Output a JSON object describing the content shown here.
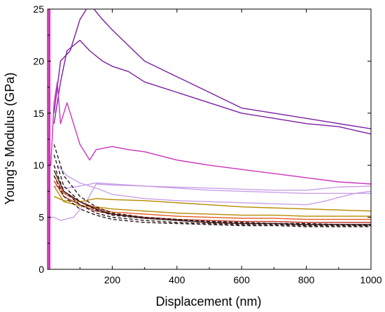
{
  "chart_data": {
    "type": "line",
    "title": "",
    "xlabel": "Displacement (nm)",
    "ylabel": "Young's Modulus (GPa)",
    "xlim": [
      0,
      1000
    ],
    "ylim": [
      0,
      25
    ],
    "xticks": [
      200,
      400,
      600,
      800,
      1000
    ],
    "yticks": [
      0,
      5,
      10,
      15,
      20,
      25
    ],
    "grid": false,
    "legend": "none",
    "series": [
      {
        "color": "#7b1fa2",
        "style": "solid",
        "x": [
          20,
          40,
          70,
          100,
          130,
          170,
          200,
          250,
          300,
          400,
          500,
          600,
          700,
          800,
          900,
          1000
        ],
        "y": [
          15,
          20,
          21,
          24,
          25.5,
          24,
          23,
          21.5,
          20,
          18.5,
          17,
          15.5,
          15,
          14.5,
          14,
          13.5
        ]
      },
      {
        "color": "#7b1fa2",
        "style": "solid",
        "x": [
          20,
          40,
          60,
          80,
          100,
          130,
          170,
          200,
          250,
          300,
          400,
          500,
          600,
          700,
          800,
          900,
          1000
        ],
        "y": [
          14,
          18,
          21,
          21.5,
          22,
          21,
          20,
          19.5,
          19,
          18,
          17,
          16,
          15,
          14.5,
          14,
          13.7,
          13
        ]
      },
      {
        "color": "#cc33bb",
        "style": "solid",
        "x": [
          10,
          20,
          30,
          40,
          60,
          80,
          100,
          130,
          150,
          200,
          250,
          300,
          400,
          500,
          600,
          700,
          800,
          900,
          1000
        ],
        "y": [
          10,
          16,
          18,
          14,
          16,
          14,
          12,
          10.5,
          11.5,
          11.8,
          11.5,
          11.3,
          10.5,
          10,
          9.6,
          9.2,
          8.8,
          8.4,
          8.2
        ]
      },
      {
        "color": "#c9a0e8",
        "style": "solid",
        "x": [
          20,
          60,
          100,
          150,
          200,
          300,
          400,
          500,
          600,
          700,
          800,
          900,
          1000
        ],
        "y": [
          8,
          7.8,
          8,
          8.3,
          8.2,
          8,
          7.9,
          7.8,
          7.7,
          7.6,
          7.6,
          7.9,
          8
        ]
      },
      {
        "color": "#c9a0e8",
        "style": "solid",
        "x": [
          30,
          60,
          100,
          150,
          200,
          300,
          400,
          500,
          600,
          700,
          800,
          850,
          900,
          950,
          1000
        ],
        "y": [
          10,
          9,
          8.3,
          7.8,
          7.2,
          6.8,
          6.6,
          6.5,
          6.4,
          6.3,
          6.2,
          6.5,
          6.9,
          7.3,
          7.5
        ]
      },
      {
        "color": "#c9a0e8",
        "style": "solid",
        "x": [
          5,
          20,
          40,
          80,
          120,
          150,
          200,
          300,
          400,
          500,
          600,
          700,
          800,
          900,
          1000
        ],
        "y": [
          5,
          5,
          4.7,
          5,
          6.5,
          8.2,
          8.1,
          8,
          7.8,
          7.6,
          7.5,
          7.4,
          7.3,
          7.3,
          7.3
        ]
      },
      {
        "color": "#b58a00",
        "style": "solid",
        "x": [
          20,
          50,
          100,
          150,
          200,
          300,
          400,
          500,
          600,
          700,
          800,
          900,
          1000
        ],
        "y": [
          7,
          6.6,
          6.5,
          6.8,
          6.7,
          6.6,
          6.4,
          6.2,
          6,
          5.9,
          5.8,
          5.7,
          5.6
        ]
      },
      {
        "color": "#b58a00",
        "style": "solid",
        "x": [
          20,
          50,
          100,
          150,
          200,
          300,
          400,
          500,
          600,
          700,
          800,
          900,
          1000
        ],
        "y": [
          8,
          6.5,
          6.1,
          6,
          5.8,
          5.6,
          5.4,
          5.3,
          5.2,
          5.2,
          5.1,
          5.1,
          5.1
        ]
      },
      {
        "color": "#e65a1e",
        "style": "solid",
        "x": [
          20,
          50,
          100,
          150,
          200,
          300,
          400,
          500,
          600,
          700,
          800,
          900,
          1000
        ],
        "y": [
          9,
          7.3,
          6.5,
          5.9,
          5.5,
          5.3,
          5.1,
          5,
          4.9,
          4.9,
          4.8,
          4.8,
          4.8
        ]
      },
      {
        "color": "#c0392b",
        "style": "solid",
        "x": [
          20,
          50,
          100,
          150,
          200,
          300,
          400,
          500,
          600,
          700,
          800,
          900,
          1000
        ],
        "y": [
          8.5,
          7,
          6.2,
          5.6,
          5.3,
          5,
          4.8,
          4.7,
          4.6,
          4.6,
          4.5,
          4.5,
          4.5
        ]
      },
      {
        "color": "#4a1a1a",
        "style": "solid",
        "x": [
          20,
          50,
          100,
          150,
          200,
          300,
          400,
          500,
          600,
          700,
          800,
          900,
          1000
        ],
        "y": [
          9.5,
          7.5,
          6.5,
          5.8,
          5.3,
          4.9,
          4.7,
          4.5,
          4.4,
          4.4,
          4.3,
          4.3,
          4.3
        ]
      },
      {
        "color": "#2a1a1a",
        "style": "dashed",
        "x": [
          20,
          50,
          100,
          150,
          200,
          300,
          400,
          500,
          600,
          700,
          800,
          900,
          1000
        ],
        "y": [
          12,
          9,
          7,
          6,
          5.4,
          5,
          4.8,
          4.6,
          4.5,
          4.4,
          4.3,
          4.3,
          4.2
        ]
      },
      {
        "color": "#2a1a1a",
        "style": "dashed",
        "x": [
          20,
          50,
          100,
          150,
          200,
          300,
          400,
          500,
          600,
          700,
          800,
          900,
          1000
        ],
        "y": [
          11,
          8,
          6.5,
          5.7,
          5.2,
          4.9,
          4.7,
          4.6,
          4.5,
          4.4,
          4.4,
          4.3,
          4.3
        ]
      },
      {
        "color": "#2a1a1a",
        "style": "dashed",
        "x": [
          20,
          50,
          100,
          150,
          200,
          300,
          400,
          500,
          600,
          700,
          800,
          900,
          1000
        ],
        "y": [
          10,
          7.5,
          6.2,
          5.4,
          5,
          4.7,
          4.5,
          4.4,
          4.3,
          4.3,
          4.2,
          4.2,
          4.2
        ]
      },
      {
        "color": "#2a1a1a",
        "style": "dashed",
        "x": [
          20,
          50,
          100,
          150,
          200,
          300,
          400,
          500,
          600,
          700,
          800,
          900,
          1000
        ],
        "y": [
          9,
          7,
          5.8,
          5.2,
          4.8,
          4.5,
          4.4,
          4.3,
          4.2,
          4.2,
          4.1,
          4.1,
          4.1
        ]
      },
      {
        "color": "#ee22cc",
        "style": "spike",
        "x": [
          0,
          1,
          2,
          3,
          4
        ],
        "y": [
          0,
          25,
          0,
          25,
          0
        ]
      }
    ]
  }
}
